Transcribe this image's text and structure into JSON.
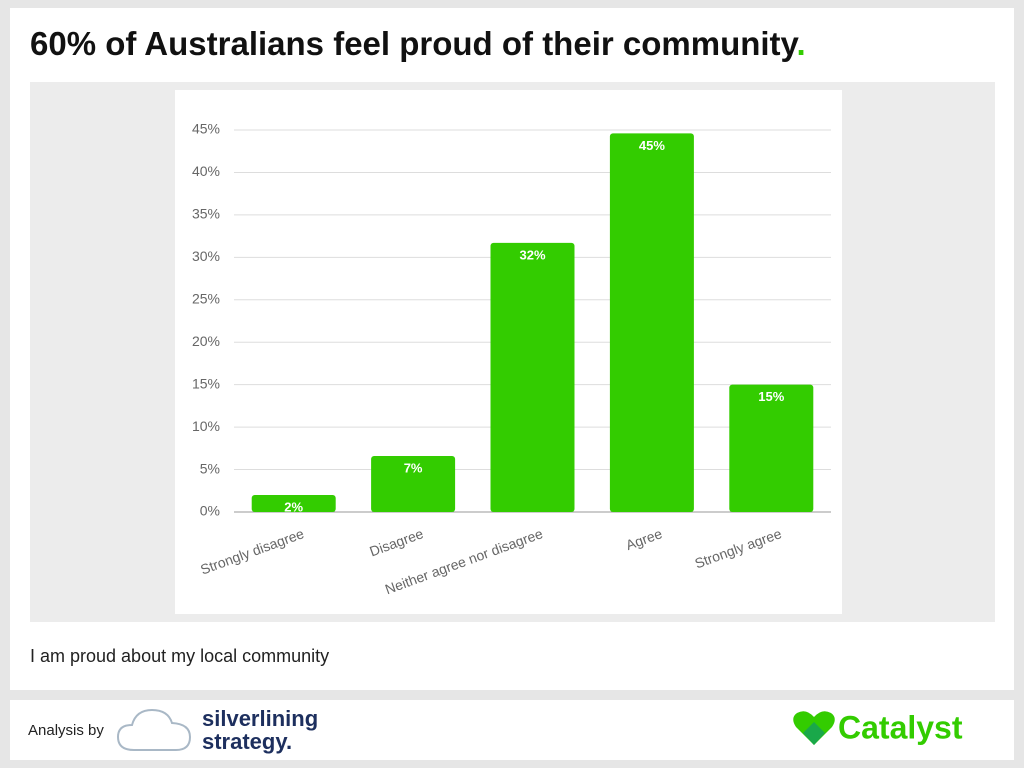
{
  "title": "60% of Australians feel proud of their community",
  "title_mark": ".",
  "caption": "I am proud about my local community",
  "footer": {
    "analysis_label": "Analysis by",
    "partner_line1": "silverlining",
    "partner_line2": "strategy.",
    "brand": "Catalyst"
  },
  "chart_data": {
    "type": "bar",
    "categories": [
      "Strongly disagree",
      "Disagree",
      "Neither agree nor disagree",
      "Agree",
      "Strongly agree"
    ],
    "values": [
      2.0,
      6.6,
      31.7,
      44.6,
      15.0
    ],
    "value_labels": [
      "2%",
      "7%",
      "32%",
      "45%",
      "15%"
    ],
    "color": "#33cc00",
    "ylim": [
      0,
      45
    ],
    "yticks": [
      {
        "value": 0,
        "label": "0%"
      },
      {
        "value": 5,
        "label": "5%"
      },
      {
        "value": 10,
        "label": "10%"
      },
      {
        "value": 15,
        "label": "15%"
      },
      {
        "value": 20,
        "label": "20%"
      },
      {
        "value": 25,
        "label": "25%"
      },
      {
        "value": 30,
        "label": "30%"
      },
      {
        "value": 35,
        "label": "35%"
      },
      {
        "value": 40,
        "label": "40%"
      },
      {
        "value": 45,
        "label": "45%"
      }
    ],
    "grid": true
  }
}
